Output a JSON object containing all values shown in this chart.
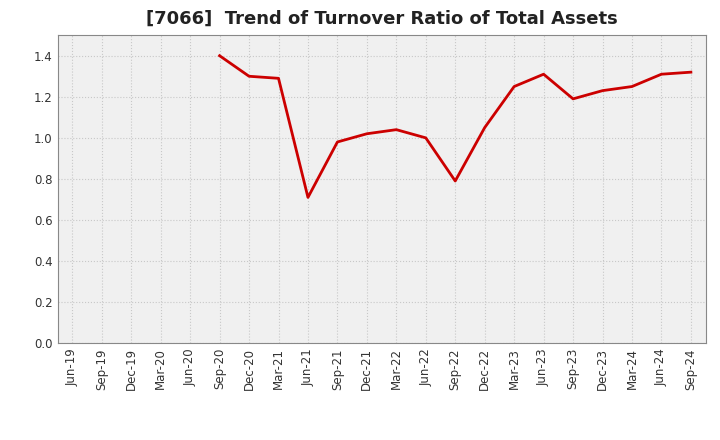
{
  "title": "[7066]  Trend of Turnover Ratio of Total Assets",
  "x_labels": [
    "Jun-19",
    "Sep-19",
    "Dec-19",
    "Mar-20",
    "Jun-20",
    "Sep-20",
    "Dec-20",
    "Mar-21",
    "Jun-21",
    "Sep-21",
    "Dec-21",
    "Mar-22",
    "Jun-22",
    "Sep-22",
    "Dec-22",
    "Mar-23",
    "Jun-23",
    "Sep-23",
    "Dec-23",
    "Mar-24",
    "Jun-24",
    "Sep-24"
  ],
  "y_values": [
    null,
    null,
    null,
    null,
    null,
    1.4,
    1.3,
    1.29,
    0.71,
    0.98,
    1.02,
    1.04,
    1.0,
    0.79,
    1.05,
    1.25,
    1.31,
    1.19,
    1.23,
    1.25,
    1.31,
    1.32
  ],
  "ylim": [
    0.0,
    1.5
  ],
  "yticks": [
    0.0,
    0.2,
    0.4,
    0.6,
    0.8,
    1.0,
    1.2,
    1.4
  ],
  "line_color": "#cc0000",
  "line_width": 2.0,
  "bg_color": "#ffffff",
  "plot_bg_color": "#f0f0f0",
  "grid_color": "#c8c8c8",
  "title_fontsize": 13,
  "axis_fontsize": 8.5
}
